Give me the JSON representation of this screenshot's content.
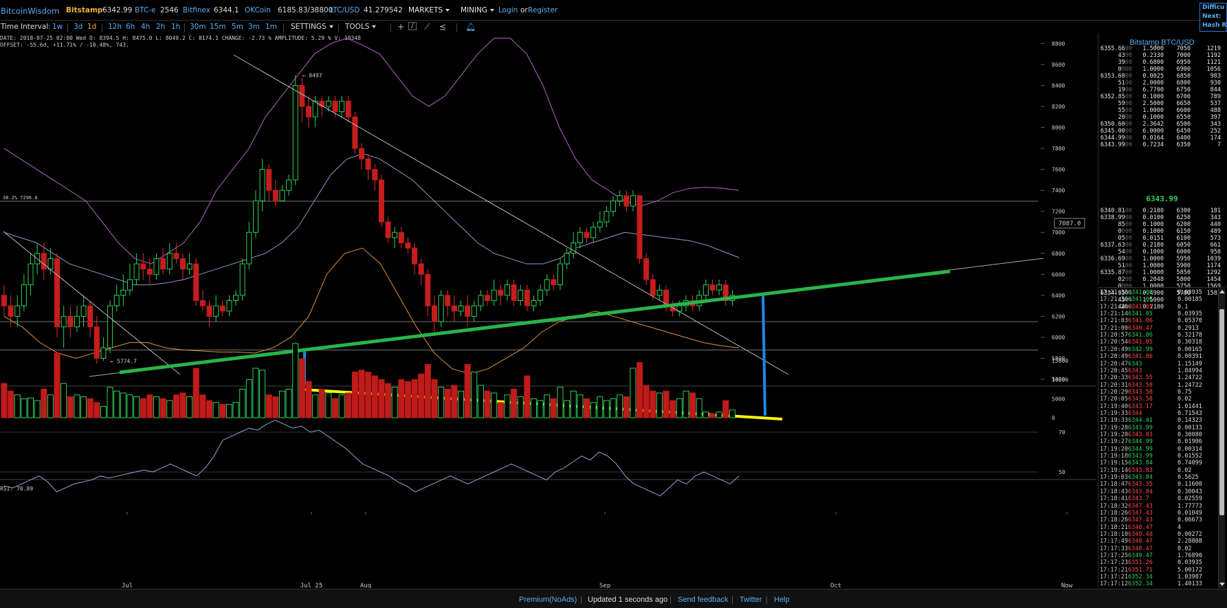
{
  "header": {
    "logo": "BitcoinWisdom",
    "exchanges": [
      {
        "name": "Bitstamp",
        "price": "6342.99",
        "active": true
      },
      {
        "name": "BTC-e",
        "price": "2546"
      },
      {
        "name": "Bitfinex",
        "price": "6344.1"
      },
      {
        "name": "OKCoin",
        "price": "6185.83/38800"
      },
      {
        "name": "LTC/USD",
        "price": "41.279542"
      }
    ],
    "markets_label": "MARKETS",
    "mining_label": "MINING",
    "login_label": "Login",
    "or_label": "or",
    "register_label": "Register",
    "right_panel": {
      "line1": "Difficu",
      "line2": "Next:",
      "line3": "Hash R"
    }
  },
  "toolbar": {
    "interval_label": "Time Interval:",
    "intervals": [
      "1w",
      "3d",
      "1d",
      "12h",
      "6h",
      "4h",
      "2h",
      "1h",
      "30m",
      "15m",
      "5m",
      "3m",
      "1m"
    ],
    "selected_interval": "1d",
    "settings_label": "SETTINGS",
    "tools_label": "TOOLS"
  },
  "info": {
    "line1": "DATE: 2018-07-25 02:00 Wed   O: 8394.5   H: 8475.0   L: 8049.2   C: 8174.1   CHANGE: -2.73 %   AMPLITUDE: 5.29 %   V: 10348",
    "line2": "OFFSET: -55.6d, +11.71% / -10.48%, 743.",
    "rsi": "RSI: 70.89"
  },
  "chart_data": {
    "type": "candlestick",
    "price_axis": {
      "ticks": [
        "8800",
        "8600",
        "8400",
        "8200",
        "8000",
        "7800",
        "7600",
        "7400",
        "7200",
        "7000",
        "6800",
        "6600",
        "6400",
        "6200",
        "6000",
        "5800",
        "5600"
      ],
      "range": [
        5450,
        8900
      ]
    },
    "current_price_label": "7087.0",
    "fib_label": "38.2% 7296.8",
    "high_marker": "8497",
    "low_marker": "5774.7",
    "volume_axis": {
      "ticks": [
        "15000",
        "10000",
        "5000",
        "0"
      ],
      "range": [
        0,
        19500
      ]
    },
    "rsi_axis": {
      "ticks": [
        "70",
        "50"
      ],
      "range": [
        30,
        80
      ]
    },
    "time_axis": {
      "labels": [
        "Jul",
        "Jul 25",
        "Aug",
        "Sep",
        "Oct",
        "Now"
      ]
    },
    "candles": [
      [
        6400,
        6300,
        6500,
        6200
      ],
      [
        6300,
        6200,
        6400,
        6100
      ],
      [
        6200,
        6300,
        6400,
        6100
      ],
      [
        6300,
        6500,
        6600,
        6250
      ],
      [
        6500,
        6700,
        6800,
        6400
      ],
      [
        6700,
        6800,
        6900,
        6600
      ],
      [
        6800,
        6650,
        6900,
        6550
      ],
      [
        6650,
        6750,
        6850,
        6600
      ],
      [
        6750,
        6100,
        6800,
        6000
      ],
      [
        6100,
        6200,
        6300,
        5900
      ],
      [
        6200,
        6100,
        6300,
        6000
      ],
      [
        6100,
        6200,
        6300,
        6050
      ],
      [
        6200,
        6300,
        6400,
        6100
      ],
      [
        6300,
        6100,
        6350,
        6000
      ],
      [
        6100,
        5800,
        6200,
        5750
      ],
      [
        5800,
        5900,
        6000,
        5775
      ],
      [
        5900,
        6300,
        6350,
        5850
      ],
      [
        6300,
        6400,
        6500,
        6250
      ],
      [
        6400,
        6450,
        6600,
        6300
      ],
      [
        6450,
        6550,
        6700,
        6400
      ],
      [
        6550,
        6700,
        6800,
        6500
      ],
      [
        6700,
        6650,
        6800,
        6550
      ],
      [
        6650,
        6600,
        6750,
        6500
      ],
      [
        6600,
        6750,
        6800,
        6550
      ],
      [
        6750,
        6650,
        6850,
        6600
      ],
      [
        6650,
        6800,
        6900,
        6600
      ],
      [
        6800,
        6750,
        6900,
        6700
      ],
      [
        6750,
        6650,
        6800,
        6550
      ],
      [
        6650,
        6700,
        6800,
        6600
      ],
      [
        6700,
        6350,
        6750,
        6300
      ],
      [
        6350,
        6300,
        6450,
        6250
      ],
      [
        6300,
        6200,
        6350,
        6100
      ],
      [
        6200,
        6300,
        6400,
        6150
      ],
      [
        6300,
        6250,
        6350,
        6200
      ],
      [
        6250,
        6350,
        6400,
        6200
      ],
      [
        6350,
        6400,
        6450,
        6300
      ],
      [
        6400,
        6700,
        6750,
        6350
      ],
      [
        6700,
        7000,
        7100,
        6650
      ],
      [
        7000,
        7300,
        7400,
        6950
      ],
      [
        7300,
        7600,
        7700,
        7200
      ],
      [
        7600,
        7400,
        7650,
        7300
      ],
      [
        7400,
        7300,
        7500,
        7250
      ],
      [
        7300,
        7400,
        7450,
        7300
      ],
      [
        7400,
        7500,
        7550,
        7350
      ],
      [
        7500,
        8400,
        8497,
        7450
      ],
      [
        8400,
        8200,
        8475,
        8049
      ],
      [
        8200,
        8100,
        8300,
        8000
      ],
      [
        8100,
        8250,
        8300,
        8000
      ],
      [
        8250,
        8200,
        8300,
        8100
      ],
      [
        8200,
        8250,
        8300,
        8150
      ],
      [
        8250,
        8150,
        8300,
        8100
      ],
      [
        8150,
        8250,
        8300,
        8100
      ],
      [
        8250,
        8100,
        8300,
        8050
      ],
      [
        8100,
        7800,
        8150,
        7750
      ],
      [
        7800,
        7700,
        7850,
        7600
      ],
      [
        7700,
        7600,
        7750,
        7500
      ],
      [
        7600,
        7500,
        7650,
        7400
      ],
      [
        7500,
        7100,
        7550,
        7050
      ],
      [
        7100,
        6950,
        7150,
        6900
      ],
      [
        6950,
        7000,
        7050,
        6850
      ],
      [
        7000,
        6900,
        7050,
        6850
      ],
      [
        6900,
        6850,
        6950,
        6800
      ],
      [
        6850,
        6700,
        6900,
        6600
      ],
      [
        6700,
        6600,
        6750,
        6500
      ],
      [
        6600,
        6300,
        6650,
        6200
      ],
      [
        6300,
        6150,
        6400,
        6050
      ],
      [
        6150,
        6400,
        6450,
        6100
      ],
      [
        6400,
        6300,
        6450,
        6200
      ],
      [
        6300,
        6250,
        6400,
        6150
      ],
      [
        6250,
        6300,
        6350,
        6200
      ],
      [
        6300,
        6200,
        6400,
        6100
      ],
      [
        6200,
        6300,
        6350,
        6150
      ],
      [
        6300,
        6400,
        6450,
        6250
      ],
      [
        6400,
        6350,
        6450,
        6300
      ],
      [
        6350,
        6450,
        6550,
        6300
      ],
      [
        6450,
        6400,
        6500,
        6300
      ],
      [
        6400,
        6500,
        6550,
        6350
      ],
      [
        6500,
        6350,
        6550,
        6300
      ],
      [
        6350,
        6450,
        6500,
        6300
      ],
      [
        6450,
        6300,
        6500,
        6250
      ],
      [
        6300,
        6350,
        6400,
        6250
      ],
      [
        6350,
        6450,
        6500,
        6300
      ],
      [
        6450,
        6550,
        6600,
        6400
      ],
      [
        6550,
        6500,
        6600,
        6450
      ],
      [
        6500,
        6700,
        6750,
        6450
      ],
      [
        6700,
        6800,
        6850,
        6650
      ],
      [
        6800,
        6900,
        7000,
        6750
      ],
      [
        6900,
        7000,
        7050,
        6850
      ],
      [
        7000,
        6950,
        7050,
        6900
      ],
      [
        6950,
        7050,
        7100,
        6900
      ],
      [
        7050,
        7100,
        7200,
        7000
      ],
      [
        7100,
        7200,
        7250,
        7050
      ],
      [
        7200,
        7300,
        7350,
        7150
      ],
      [
        7300,
        7350,
        7400,
        7250
      ],
      [
        7350,
        7250,
        7400,
        7200
      ],
      [
        7250,
        7350,
        7400,
        7200
      ],
      [
        7350,
        6750,
        7350,
        6700
      ],
      [
        6750,
        6550,
        6800,
        6500
      ],
      [
        6550,
        6400,
        6600,
        6350
      ],
      [
        6400,
        6450,
        6500,
        6350
      ],
      [
        6450,
        6300,
        6500,
        6250
      ],
      [
        6300,
        6250,
        6350,
        6200
      ],
      [
        6250,
        6300,
        6350,
        6200
      ],
      [
        6300,
        6350,
        6400,
        6250
      ],
      [
        6350,
        6300,
        6400,
        6250
      ],
      [
        6300,
        6400,
        6450,
        6250
      ],
      [
        6400,
        6500,
        6550,
        6350
      ],
      [
        6500,
        6450,
        6550,
        6400
      ],
      [
        6450,
        6500,
        6550,
        6400
      ],
      [
        6500,
        6350,
        6550,
        6300
      ],
      [
        6350,
        6400,
        6450,
        6300
      ]
    ],
    "volumes": [
      9000,
      7000,
      6000,
      5000,
      5200,
      4500,
      7500,
      6000,
      17000,
      9000,
      5500,
      6000,
      5500,
      5000,
      4000,
      3000,
      8000,
      7000,
      6500,
      6000,
      5500,
      5000,
      6000,
      5500,
      5000,
      4500,
      6000,
      6500,
      5500,
      13000,
      6000,
      4500,
      4000,
      3500,
      3500,
      4000,
      7500,
      10000,
      13000,
      12500,
      6000,
      5500,
      7000,
      7500,
      19500,
      15500,
      9500,
      6000,
      7500,
      6500,
      5000,
      6000,
      6500,
      12000,
      12500,
      12000,
      11000,
      10000,
      9000,
      8000,
      10000,
      9500,
      10000,
      11500,
      14000,
      10000,
      8000,
      7500,
      8500,
      7000,
      14000,
      12000,
      8500,
      7000,
      6500,
      4000,
      6000,
      7500,
      5500,
      11000,
      5000,
      4500,
      6000,
      5000,
      8000,
      4500,
      7000,
      6000,
      5000,
      4000,
      5500,
      4500,
      5000,
      6000,
      5500,
      13000,
      14500,
      8500,
      7000,
      6500,
      7000,
      4500,
      5000,
      7000,
      6500,
      5000,
      1500,
      1000,
      1500,
      4500,
      2000
    ],
    "rsi_path": [
      43,
      42,
      44,
      46,
      48,
      45,
      40,
      42,
      44,
      45,
      46,
      48,
      47,
      48,
      49,
      50,
      51,
      50,
      52,
      54,
      52,
      50,
      48,
      52,
      58,
      66,
      68,
      70,
      72,
      71,
      74,
      76,
      74,
      72,
      73,
      70,
      71,
      68,
      65,
      62,
      58,
      54,
      52,
      50,
      48,
      45,
      43,
      40,
      42,
      44,
      46,
      48,
      46,
      44,
      46,
      48,
      50,
      52,
      54,
      52,
      50,
      48,
      46,
      50,
      52,
      55,
      58,
      56,
      60,
      58,
      54,
      48,
      44,
      42,
      40,
      38,
      42,
      46,
      44,
      48,
      50,
      48,
      46,
      44,
      48
    ]
  },
  "orderbook": {
    "title": "Bitstamp BTC/USD",
    "asks": [
      {
        "p": "6355.66",
        "pd": "00",
        "a": "1.5000",
        "b": "7050",
        "v": "1219"
      },
      {
        "p": "43",
        "pd": "00",
        "a": "0.2330",
        "b": "7000",
        "v": "1192"
      },
      {
        "p": "39",
        "pd": "00",
        "a": "0.6800",
        "b": "6950",
        "v": "1121"
      },
      {
        "p": "0",
        "pd": "000",
        "a": "1.0000",
        "b": "6900",
        "v": "1056"
      },
      {
        "p": "6353.60",
        "pd": "00",
        "a": "0.0025",
        "b": "6850",
        "v": "983"
      },
      {
        "p": "51",
        "pd": "00",
        "a": "2.0000",
        "b": "6800",
        "v": "930"
      },
      {
        "p": "19",
        "pd": "00",
        "a": "6.7700",
        "b": "6750",
        "v": "844"
      },
      {
        "p": "6352.85",
        "pd": "00",
        "a": "0.1000",
        "b": "6700",
        "v": "789"
      },
      {
        "p": "59",
        "pd": "00",
        "a": "2.5000",
        "b": "6650",
        "v": "537"
      },
      {
        "p": "55",
        "pd": "00",
        "a": "1.0000",
        "b": "6600",
        "v": "488"
      },
      {
        "p": "20",
        "pd": "00",
        "a": "0.1000",
        "b": "6550",
        "v": "397"
      },
      {
        "p": "6350.60",
        "pd": "00",
        "a": "2.3642",
        "b": "6500",
        "v": "343"
      },
      {
        "p": "6345.00",
        "pd": "00",
        "a": "6.0000",
        "b": "6450",
        "v": "252"
      },
      {
        "p": "6344.99",
        "pd": "00",
        "a": "0.0164",
        "b": "6400",
        "v": "174"
      },
      {
        "p": "6343.99",
        "pd": "00",
        "a": "0.7234",
        "b": "6350",
        "v": "7"
      }
    ],
    "last_price": "6343.99",
    "bids": [
      {
        "p": "6340.81",
        "pd": "00",
        "a": "0.2180",
        "b": "6300",
        "v": "181"
      },
      {
        "p": "6338.99",
        "pd": "00",
        "a": "0.0100",
        "b": "6250",
        "v": "343"
      },
      {
        "p": "85",
        "pd": "00",
        "a": "0.1000",
        "b": "6200",
        "v": "440"
      },
      {
        "p": "0",
        "pd": "000",
        "a": "0.1000",
        "b": "6150",
        "v": "489"
      },
      {
        "p": "05",
        "pd": "00",
        "a": "0.0151",
        "b": "6100",
        "v": "573"
      },
      {
        "p": "6337.63",
        "pd": "00",
        "a": "0.2180",
        "b": "6050",
        "v": "661"
      },
      {
        "p": "54",
        "pd": "00",
        "a": "0.1000",
        "b": "6000",
        "v": "958"
      },
      {
        "p": "6336.69",
        "pd": "00",
        "a": "1.0000",
        "b": "5950",
        "v": "1039"
      },
      {
        "p": "51",
        "pd": "00",
        "a": "1.0000",
        "b": "5900",
        "v": "1174"
      },
      {
        "p": "6335.87",
        "pd": "00",
        "a": "1.0000",
        "b": "5850",
        "v": "1292"
      },
      {
        "p": "02",
        "pd": "00",
        "a": "0.2048",
        "b": "5800",
        "v": "1454"
      },
      {
        "p": "0",
        "pd": "000",
        "a": "1.0000",
        "b": "5750",
        "v": "1569"
      },
      {
        "p": "6334.95",
        "pd": "00",
        "a": "0.4900",
        "b": "5700",
        "v": "1583"
      },
      {
        "p": "45",
        "pd": "00",
        "a": "1.5000",
        "b": "",
        "v": ""
      },
      {
        "p": "44",
        "pd": "00",
        "a": "0.2180",
        "b": "",
        "v": ""
      }
    ]
  },
  "trades": [
    [
      "17:21:36",
      "6341.06",
      "up",
      "0.03935"
    ],
    [
      "17:21:36",
      "6341.06",
      "up",
      "0.00185"
    ],
    [
      "17:21:26",
      "6341.05",
      "dn",
      "0.1"
    ],
    [
      "17:21:14",
      "6341.05",
      "up",
      "0.03935"
    ],
    [
      "17:21:03",
      "6341.06",
      "dn",
      "0.05370"
    ],
    [
      "17:21:00",
      "6340.47",
      "dn",
      "0.2913"
    ],
    [
      "17:20:57",
      "6341.06",
      "up",
      "0.32178"
    ],
    [
      "17:20:54",
      "6341.05",
      "dn",
      "0.30318"
    ],
    [
      "17:20:49",
      "6342.99",
      "up",
      "0.00165"
    ],
    [
      "17:20:49",
      "6341.06",
      "dn",
      "0.00391"
    ],
    [
      "17:20:47",
      "6343",
      "up",
      "1.15149"
    ],
    [
      "17:20:45",
      "6343",
      "dn",
      "1.84994"
    ],
    [
      "17:20:33",
      "6343.55",
      "dn",
      "1.24722"
    ],
    [
      "17:20:31",
      "6343.58",
      "dn",
      "1.24722"
    ],
    [
      "17:20:29",
      "6343.58",
      "dn",
      "0.75"
    ],
    [
      "17:20:05",
      "6343.58",
      "dn",
      "0.02"
    ],
    [
      "17:19:40",
      "6343.17",
      "dn",
      "1.01441"
    ],
    [
      "17:19:33",
      "6344",
      "dn",
      "0.71543"
    ],
    [
      "17:19:33",
      "6344.41",
      "up",
      "0.14323"
    ],
    [
      "17:19:28",
      "6343.99",
      "up",
      "0.00133"
    ],
    [
      "17:19:28",
      "6343.83",
      "dn",
      "0.30080"
    ],
    [
      "17:19:27",
      "6344.99",
      "up",
      "0.01906"
    ],
    [
      "17:19:20",
      "6344.99",
      "up",
      "0.00314"
    ],
    [
      "17:19:18",
      "6343.99",
      "up",
      "0.01552"
    ],
    [
      "17:19:15",
      "6343.84",
      "up",
      "0.74099"
    ],
    [
      "17:19:14",
      "6343.83",
      "dn",
      "0.02"
    ],
    [
      "17:19:03",
      "6343.84",
      "up",
      "0.5625"
    ],
    [
      "17:18:47",
      "6343.35",
      "dn",
      "0.11600"
    ],
    [
      "17:18:43",
      "6343.84",
      "dn",
      "0.30043"
    ],
    [
      "17:18:41",
      "6343.7",
      "dn",
      "0.02559"
    ],
    [
      "17:18:32",
      "6347.43",
      "dn",
      "1.77773"
    ],
    [
      "17:18:26",
      "6347.43",
      "dn",
      "0.01049"
    ],
    [
      "17:18:26",
      "6347.43",
      "dn",
      "0.06673"
    ],
    [
      "17:18:21",
      "6340.47",
      "dn",
      "4"
    ],
    [
      "17:18:10",
      "6349.48",
      "dn",
      "0.00272"
    ],
    [
      "17:17:49",
      "6348.47",
      "dn",
      "2.28808"
    ],
    [
      "17:17:33",
      "6348.47",
      "dn",
      "0.02"
    ],
    [
      "17:17:25",
      "6349.47",
      "up",
      "1.76890"
    ],
    [
      "17:17:23",
      "6351.26",
      "dn",
      "0.03935"
    ],
    [
      "17:17:21",
      "6351.71",
      "dn",
      "5.00172"
    ],
    [
      "17:17:21",
      "6352.34",
      "up",
      "1.03987"
    ],
    [
      "17:17:12",
      "6352.34",
      "up",
      "1.40133"
    ]
  ],
  "footer": {
    "premium": "Premium(NoAds)",
    "updated": "Updated 1 seconds ago",
    "feedback": "Send feedback",
    "twitter": "Twitter",
    "help": "Help"
  },
  "colors": {
    "up": "#2bd35a",
    "down": "#c61d1d",
    "accent": "#5aaef5",
    "stamp": "#f3b43a",
    "trend_green": "#28b44a",
    "trend_yellow": "#ffff00",
    "marker_blue": "#1e88e5"
  }
}
